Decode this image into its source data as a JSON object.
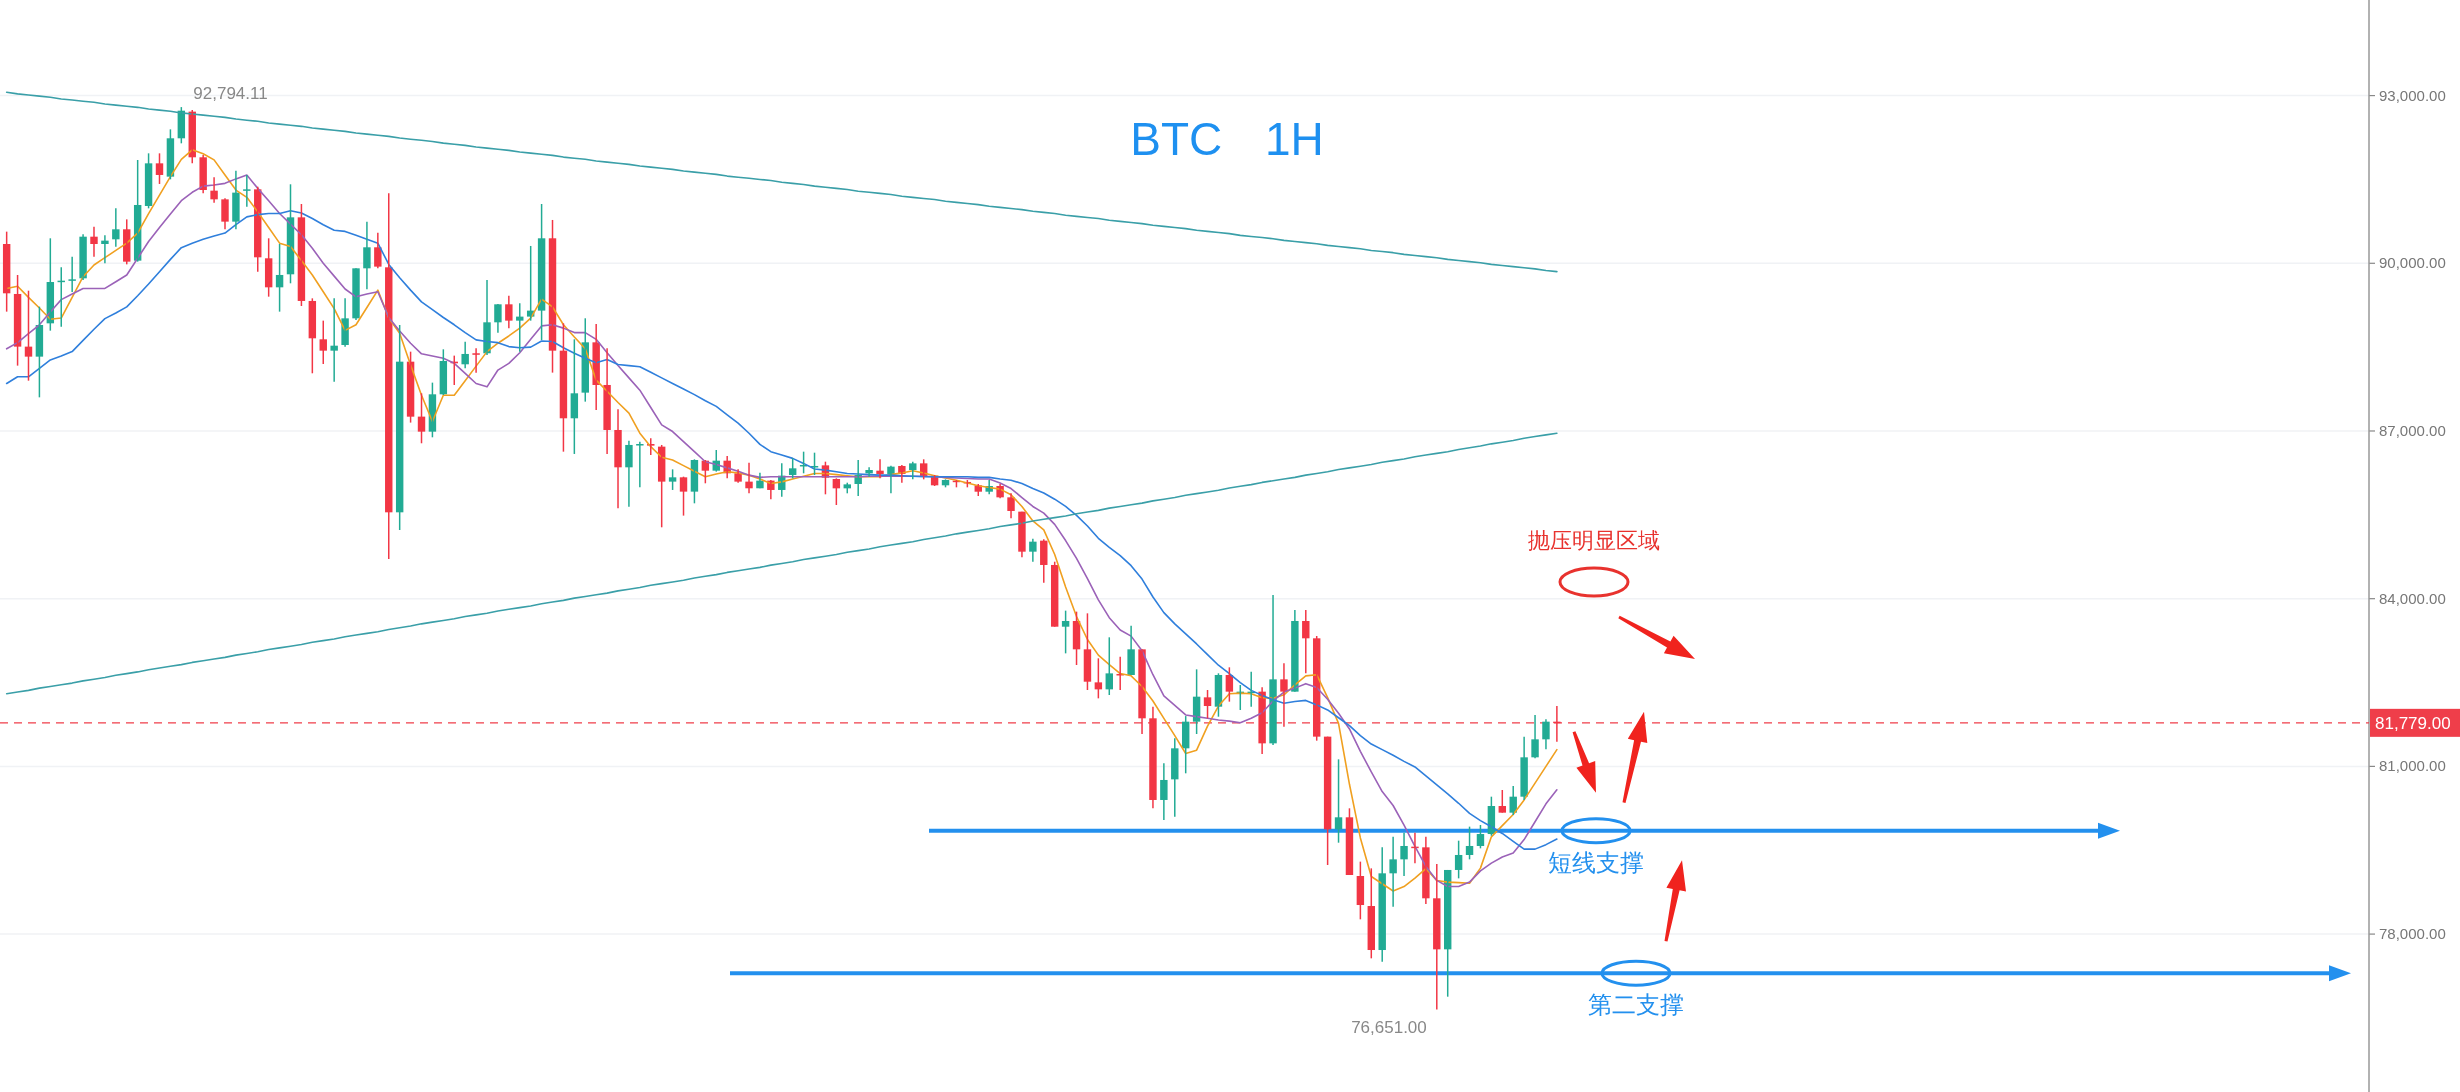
{
  "chart_data": {
    "type": "candlestick",
    "title": "BTC 1H",
    "categories": [
      null,
      null,
      null,
      null,
      null,
      null,
      null,
      null,
      null,
      null,
      null,
      null,
      null,
      null,
      null,
      null,
      null,
      null,
      null,
      null,
      null,
      null,
      null,
      null,
      null,
      null,
      null,
      null,
      null,
      null,
      null,
      null,
      null,
      null,
      null,
      null,
      null,
      null,
      null,
      null,
      null,
      null,
      null,
      null,
      null,
      null,
      null,
      null,
      null,
      null,
      null,
      null,
      null,
      null,
      null,
      null,
      null,
      null,
      null,
      null,
      null,
      null,
      null,
      null,
      null,
      null,
      null,
      null,
      null,
      null,
      null,
      null,
      null,
      null,
      null,
      null,
      null,
      null,
      null,
      null,
      null,
      null,
      null,
      null,
      null,
      null,
      null,
      null,
      null,
      null,
      null,
      null,
      null,
      null,
      null,
      null,
      null,
      null,
      null,
      null,
      null,
      null,
      null,
      null,
      null,
      null,
      null,
      null,
      null,
      null,
      null,
      null,
      null,
      null,
      null,
      null,
      null,
      null,
      null,
      null,
      null,
      null,
      null,
      null,
      null,
      null,
      null,
      null,
      null,
      null,
      null,
      null,
      null,
      null,
      null,
      null,
      null,
      null,
      null,
      null,
      null,
      null,
      null
    ],
    "ohlc": [
      [
        90345,
        90566,
        89135,
        89463
      ],
      [
        89451,
        89791,
        88169,
        88509
      ],
      [
        88509,
        89510,
        87900,
        88330
      ],
      [
        88330,
        89224,
        87602,
        88896
      ],
      [
        88926,
        90447,
        88795,
        89665
      ],
      [
        89671,
        89928,
        88866,
        89689
      ],
      [
        89701,
        90119,
        89486,
        89713
      ],
      [
        89731,
        90518,
        89701,
        90476
      ],
      [
        90476,
        90655,
        90119,
        90345
      ],
      [
        90345,
        90500,
        89999,
        90405
      ],
      [
        90429,
        90983,
        90297,
        90608
      ],
      [
        90608,
        90786,
        89981,
        90029
      ],
      [
        90047,
        91848,
        90029,
        91043
      ],
      [
        91025,
        91967,
        90983,
        91788
      ],
      [
        91788,
        91967,
        91419,
        91580
      ],
      [
        91550,
        92396,
        91502,
        92236
      ],
      [
        92236,
        92794.11,
        92146,
        92730
      ],
      [
        92713,
        92742,
        91788,
        91896
      ],
      [
        91896,
        91937,
        91252,
        91311
      ],
      [
        91299,
        91538,
        91085,
        91144
      ],
      [
        91144,
        91162,
        90608,
        90745
      ],
      [
        90745,
        91657,
        90608,
        91264
      ],
      [
        91299,
        91580,
        91013,
        91323
      ],
      [
        91323,
        91371,
        89850,
        90107
      ],
      [
        90089,
        90447,
        89403,
        89570
      ],
      [
        89570,
        90345,
        89135,
        89791
      ],
      [
        89803,
        91413,
        89642,
        90822
      ],
      [
        90822,
        91061,
        89236,
        89326
      ],
      [
        89326,
        89373,
        88032,
        88658
      ],
      [
        88640,
        88974,
        88198,
        88437
      ],
      [
        88437,
        89373,
        87882,
        88526
      ],
      [
        88538,
        89373,
        88509,
        89015
      ],
      [
        89015,
        89910,
        88985,
        89910
      ],
      [
        89910,
        90745,
        89534,
        90286
      ],
      [
        90286,
        90548,
        89910,
        89940
      ],
      [
        89928,
        91252,
        84710,
        85545
      ],
      [
        85545,
        88896,
        85229,
        88240
      ],
      [
        88240,
        88419,
        87150,
        87256
      ],
      [
        87257,
        87674,
        86780,
        86988
      ],
      [
        86988,
        87865,
        86887,
        87656
      ],
      [
        87656,
        88461,
        87644,
        88252
      ],
      [
        88240,
        88348,
        87823,
        88211
      ],
      [
        88193,
        88598,
        88121,
        88378
      ],
      [
        88390,
        88479,
        88044,
        88372
      ],
      [
        88390,
        89702,
        88360,
        88944
      ],
      [
        88944,
        89272,
        88759,
        89266
      ],
      [
        89266,
        89421,
        88837,
        88974
      ],
      [
        88974,
        89284,
        88419,
        89046
      ],
      [
        89046,
        90310,
        88974,
        89153
      ],
      [
        89153,
        91061,
        88628,
        90447
      ],
      [
        90447,
        90775,
        88044,
        88437
      ],
      [
        88437,
        88926,
        86630,
        87227
      ],
      [
        87227,
        88640,
        86589,
        87674
      ],
      [
        87686,
        89016,
        87525,
        88586
      ],
      [
        88586,
        88914,
        87376,
        87823
      ],
      [
        87823,
        88479,
        86589,
        87018
      ],
      [
        87018,
        87388,
        85617,
        86350
      ],
      [
        86350,
        86827,
        85646,
        86750
      ],
      [
        86750,
        86809,
        85992,
        86767
      ],
      [
        86767,
        86869,
        86571,
        86738
      ],
      [
        86720,
        86750,
        85277,
        86094
      ],
      [
        86094,
        86314,
        85945,
        86171
      ],
      [
        86171,
        86183,
        85486,
        85915
      ],
      [
        85915,
        86493,
        85706,
        86481
      ],
      [
        86469,
        86481,
        86064,
        86290
      ],
      [
        86290,
        86660,
        86273,
        86469
      ],
      [
        86469,
        86553,
        86153,
        86243
      ],
      [
        86243,
        86314,
        86076,
        86094
      ],
      [
        86094,
        86434,
        85885,
        85975
      ],
      [
        85975,
        86255,
        85975,
        86112
      ],
      [
        86112,
        86124,
        85778,
        85945
      ],
      [
        85945,
        86422,
        85825,
        86201
      ],
      [
        86213,
        86511,
        86153,
        86332
      ],
      [
        86374,
        86630,
        86243,
        86392
      ],
      [
        86350,
        86612,
        86213,
        86374
      ],
      [
        86385,
        86451,
        85867,
        86165
      ],
      [
        86141,
        86153,
        85676,
        85974
      ],
      [
        85974,
        86075,
        85885,
        86045
      ],
      [
        86052,
        86481,
        85837,
        86213
      ],
      [
        86243,
        86350,
        86183,
        86302
      ],
      [
        86290,
        86493,
        86153,
        86231
      ],
      [
        86231,
        86380,
        85885,
        86362
      ],
      [
        86374,
        86392,
        86075,
        86231
      ],
      [
        86302,
        86451,
        86135,
        86421
      ],
      [
        86421,
        86493,
        86135,
        86195
      ],
      [
        86201,
        86213,
        86016,
        86028
      ],
      [
        86028,
        86135,
        85992,
        86123
      ],
      [
        86111,
        86123,
        85992,
        86093
      ],
      [
        86088,
        86123,
        85992,
        86064
      ],
      [
        86028,
        86052,
        85837,
        85914
      ],
      [
        85914,
        86123,
        85867,
        86016
      ],
      [
        86016,
        86052,
        85795,
        85813
      ],
      [
        85813,
        85885,
        85437,
        85569
      ],
      [
        85557,
        85557,
        84740,
        84841
      ],
      [
        84841,
        85074,
        84662,
        85020
      ],
      [
        85038,
        85062,
        84286,
        84603
      ],
      [
        84603,
        84662,
        83499,
        83499
      ],
      [
        83499,
        83786,
        83022,
        83601
      ],
      [
        83601,
        83768,
        82814,
        83094
      ],
      [
        83094,
        83738,
        82366,
        82515
      ],
      [
        82503,
        82933,
        82217,
        82378
      ],
      [
        82378,
        83309,
        82277,
        82664
      ],
      [
        82653,
        82963,
        82366,
        82635
      ],
      [
        82635,
        83517,
        82635,
        83094
      ],
      [
        83094,
        83094,
        81579,
        81860
      ],
      [
        81860,
        82068,
        80250,
        80399
      ],
      [
        80399,
        81055,
        80041,
        80757
      ],
      [
        80768,
        81502,
        80100,
        81323
      ],
      [
        81323,
        81900,
        80876,
        81800
      ],
      [
        81800,
        82736,
        81579,
        82247
      ],
      [
        82235,
        82366,
        81860,
        82080
      ],
      [
        82068,
        82665,
        81889,
        82635
      ],
      [
        82635,
        82772,
        82158,
        82337
      ],
      [
        82319,
        82456,
        82009,
        82337
      ],
      [
        82319,
        82694,
        82068,
        82337
      ],
      [
        82337,
        82414,
        81222,
        81412
      ],
      [
        81412,
        84066,
        81383,
        82557
      ],
      [
        82557,
        82843,
        81710,
        82337
      ],
      [
        82337,
        83798,
        82337,
        83601
      ],
      [
        83601,
        83798,
        82665,
        83291
      ],
      [
        83291,
        83332,
        81460,
        81532
      ],
      [
        81532,
        81532,
        79236,
        79874
      ],
      [
        79874,
        81126,
        79635,
        80089
      ],
      [
        80089,
        80250,
        79057,
        79057
      ],
      [
        79039,
        79296,
        78264,
        78520
      ],
      [
        78502,
        79176,
        77566,
        77715
      ],
      [
        77715,
        79552,
        77507,
        79087
      ],
      [
        79087,
        79743,
        78490,
        79337
      ],
      [
        79337,
        79814,
        79039,
        79576
      ],
      [
        79564,
        79814,
        79266,
        79552
      ],
      [
        79552,
        79743,
        78538,
        78640
      ],
      [
        78640,
        79254,
        76651,
        77727
      ],
      [
        77727,
        79147,
        76880,
        79147
      ],
      [
        79147,
        79671,
        78997,
        79415
      ],
      [
        79415,
        79922,
        79337,
        79576
      ],
      [
        79576,
        79951,
        79534,
        79790
      ],
      [
        79790,
        80458,
        79760,
        80291
      ],
      [
        80291,
        80578,
        80172,
        80172
      ],
      [
        80172,
        80650,
        80131,
        80458
      ],
      [
        80458,
        81532,
        80399,
        81162
      ],
      [
        81162,
        81919,
        81144,
        81484
      ],
      [
        81484,
        81842,
        81305,
        81800
      ],
      [
        81800,
        82080,
        81442,
        81779
      ]
    ],
    "ylim": [
      75175,
      94710
    ],
    "yticks": [
      {
        "value": 78000,
        "label": "78,000.00"
      },
      {
        "value": 81000,
        "label": "81,000.00"
      },
      {
        "value": 84000,
        "label": "84,000.00"
      },
      {
        "value": 87000,
        "label": "87,000.00"
      },
      {
        "value": 90000,
        "label": "90,000.00"
      },
      {
        "value": 93000,
        "label": "93,000.00"
      }
    ],
    "tick_labels": "y",
    "grid": "y",
    "series": [
      {
        "type": "line",
        "color": "#f0a020",
        "values": [
          89550,
          89590,
          89390,
          89200,
          89000,
          89020,
          89390,
          89760,
          89970,
          90100,
          90230,
          90360,
          90540,
          90890,
          91220,
          91550,
          91860,
          92030,
          91960,
          91850,
          91580,
          91310,
          91180,
          90920,
          90640,
          90360,
          90300,
          90050,
          89790,
          89490,
          89190,
          88800,
          88900,
          89210,
          89520,
          89020,
          88750,
          88180,
          87640,
          87170,
          87640,
          87640,
          87900,
          88160,
          88420,
          88570,
          88700,
          88840,
          89020,
          89360,
          89220,
          88900,
          88680,
          88470,
          87910,
          87710,
          87510,
          87320,
          86960,
          86720,
          86530,
          86480,
          86380,
          86280,
          86180,
          86230,
          86270,
          86250,
          86210,
          86140,
          86060,
          86090,
          86140,
          86190,
          86240,
          86240,
          86220,
          86200,
          86180,
          86180,
          86180,
          86220,
          86250,
          86290,
          86250,
          86200,
          86160,
          86120,
          86070,
          86020,
          85990,
          85960,
          85860,
          85650,
          85390,
          85230,
          84790,
          84210,
          83680,
          83270,
          82990,
          82820,
          82660,
          82620,
          82430,
          82170,
          81860,
          81550,
          81230,
          81290,
          81720,
          82080,
          82300,
          82310,
          82300,
          82230,
          82220,
          82280,
          82460,
          82620,
          82640,
          82230,
          81770,
          80680,
          79720,
          79030,
          78900,
          78770,
          78850,
          79000,
          79170,
          78960,
          78930,
          78920,
          78910,
          79180,
          79740,
          79940,
          80140,
          80400,
          80700,
          81000,
          81300
        ]
      },
      {
        "type": "line",
        "color": "#9b62b8",
        "values": [
          88470,
          88580,
          88740,
          88900,
          89130,
          89350,
          89450,
          89550,
          89550,
          89550,
          89670,
          89790,
          90090,
          90390,
          90640,
          90880,
          91120,
          91270,
          91380,
          91400,
          91430,
          91510,
          91580,
          91340,
          91120,
          90890,
          90700,
          90510,
          90270,
          90000,
          89770,
          89540,
          89400,
          89450,
          89490,
          89030,
          88790,
          88570,
          88380,
          88340,
          88300,
          88210,
          88030,
          87850,
          87790,
          88090,
          88210,
          88400,
          88640,
          88880,
          88900,
          88840,
          88760,
          88760,
          88640,
          88400,
          88170,
          87950,
          87730,
          87420,
          87110,
          86990,
          86810,
          86630,
          86450,
          86400,
          86340,
          86280,
          86210,
          86170,
          86180,
          86180,
          86180,
          86180,
          86180,
          86180,
          86180,
          86180,
          86180,
          86190,
          86190,
          86190,
          86190,
          86190,
          86190,
          86180,
          86170,
          86160,
          86150,
          86140,
          86140,
          86070,
          85970,
          85810,
          85650,
          85530,
          85330,
          85040,
          84720,
          84360,
          83980,
          83660,
          83440,
          83330,
          83070,
          82640,
          82260,
          82090,
          81920,
          81890,
          81860,
          81830,
          81810,
          81780,
          81860,
          81960,
          82170,
          82330,
          82400,
          82480,
          82410,
          82200,
          81950,
          81670,
          81270,
          80900,
          80550,
          80300,
          79950,
          79570,
          79210,
          78960,
          78850,
          78850,
          78930,
          79130,
          79270,
          79380,
          79450,
          79690,
          80010,
          80330,
          80580
        ]
      },
      {
        "type": "line",
        "color": "#2f7fdc",
        "values": [
          87850,
          87970,
          87970,
          88120,
          88270,
          88340,
          88420,
          88620,
          88820,
          89010,
          89110,
          89220,
          89420,
          89630,
          89850,
          90070,
          90280,
          90360,
          90430,
          90490,
          90540,
          90690,
          90830,
          90870,
          90890,
          90890,
          90940,
          90900,
          90800,
          90690,
          90590,
          90570,
          90500,
          90430,
          90360,
          89980,
          89740,
          89520,
          89310,
          89170,
          89030,
          88900,
          88760,
          88630,
          88600,
          88580,
          88510,
          88490,
          88500,
          88610,
          88600,
          88490,
          88390,
          88300,
          88220,
          88280,
          88190,
          88170,
          88150,
          88050,
          87950,
          87850,
          87750,
          87650,
          87540,
          87440,
          87290,
          87140,
          86960,
          86760,
          86630,
          86570,
          86510,
          86420,
          86320,
          86300,
          86270,
          86240,
          86230,
          86220,
          86210,
          86210,
          86200,
          86190,
          86180,
          86180,
          86180,
          86180,
          86180,
          86170,
          86170,
          86140,
          86120,
          86060,
          85970,
          85890,
          85780,
          85650,
          85490,
          85300,
          85080,
          84920,
          84770,
          84590,
          84350,
          84030,
          83750,
          83550,
          83370,
          83190,
          83000,
          82810,
          82660,
          82500,
          82360,
          82270,
          82190,
          82130,
          82160,
          82180,
          82100,
          82010,
          81870,
          81730,
          81550,
          81400,
          81300,
          81200,
          81090,
          80990,
          80830,
          80670,
          80510,
          80340,
          80160,
          80030,
          79920,
          79800,
          79660,
          79520,
          79520,
          79600,
          79700
        ]
      },
      {
        "type": "line",
        "color": "#3a9fa8",
        "values": [
          93060,
          93030,
          93010,
          92990,
          92970,
          92940,
          92920,
          92900,
          92880,
          92850,
          92830,
          92810,
          92790,
          92760,
          92740,
          92720,
          92690,
          92670,
          92650,
          92630,
          92610,
          92580,
          92560,
          92540,
          92510,
          92490,
          92470,
          92450,
          92420,
          92400,
          92380,
          92360,
          92330,
          92310,
          92290,
          92270,
          92240,
          92220,
          92200,
          92180,
          92150,
          92130,
          92110,
          92080,
          92060,
          92040,
          92020,
          91990,
          91970,
          91950,
          91930,
          91900,
          91880,
          91860,
          91830,
          91810,
          91790,
          91770,
          91740,
          91720,
          91700,
          91680,
          91650,
          91630,
          91610,
          91590,
          91560,
          91540,
          91520,
          91500,
          91480,
          91450,
          91430,
          91410,
          91380,
          91360,
          91340,
          91320,
          91290,
          91270,
          91250,
          91230,
          91200,
          91180,
          91160,
          91140,
          91110,
          91090,
          91070,
          91050,
          91020,
          91000,
          90980,
          90960,
          90930,
          90910,
          90890,
          90860,
          90840,
          90820,
          90800,
          90770,
          90750,
          90730,
          90710,
          90680,
          90660,
          90640,
          90620,
          90590,
          90570,
          90550,
          90530,
          90500,
          90480,
          90460,
          90440,
          90410,
          90390,
          90370,
          90350,
          90320,
          90300,
          90280,
          90260,
          90230,
          90210,
          90190,
          90160,
          90140,
          90120,
          90100,
          90070,
          90050,
          90030,
          90010,
          89980,
          89960,
          89940,
          89920,
          89900,
          89870,
          89850
        ]
      },
      {
        "type": "line",
        "color": "#3a9fa8",
        "values": [
          82300,
          82330,
          82360,
          82400,
          82430,
          82460,
          82490,
          82530,
          82560,
          82590,
          82630,
          82660,
          82690,
          82730,
          82760,
          82790,
          82820,
          82860,
          82890,
          82920,
          82950,
          82990,
          83020,
          83050,
          83090,
          83120,
          83150,
          83180,
          83220,
          83250,
          83280,
          83320,
          83350,
          83380,
          83410,
          83450,
          83480,
          83510,
          83550,
          83580,
          83610,
          83640,
          83680,
          83710,
          83740,
          83780,
          83810,
          83840,
          83870,
          83910,
          83940,
          83970,
          84010,
          84040,
          84070,
          84100,
          84140,
          84170,
          84200,
          84240,
          84270,
          84300,
          84330,
          84370,
          84400,
          84430,
          84470,
          84500,
          84530,
          84560,
          84600,
          84630,
          84660,
          84700,
          84730,
          84760,
          84790,
          84830,
          84860,
          84890,
          84930,
          84960,
          84990,
          85020,
          85060,
          85090,
          85120,
          85160,
          85190,
          85220,
          85250,
          85290,
          85320,
          85350,
          85390,
          85420,
          85450,
          85480,
          85520,
          85550,
          85580,
          85620,
          85650,
          85680,
          85710,
          85750,
          85780,
          85810,
          85850,
          85880,
          85910,
          85940,
          85980,
          86010,
          86040,
          86080,
          86110,
          86140,
          86170,
          86210,
          86240,
          86270,
          86310,
          86340,
          86370,
          86400,
          86440,
          86470,
          86500,
          86540,
          86570,
          86600,
          86630,
          86670,
          86700,
          86730,
          86770,
          86800,
          86830,
          86870,
          86900,
          86930,
          86960
        ]
      }
    ],
    "ref_lines": [
      {
        "axis": "y",
        "value": 81779,
        "label": "81,779.00",
        "color": "#ef3e4a",
        "line_style": "dashed"
      },
      {
        "axis": "y",
        "value": 79850,
        "color": "#2390ee",
        "line_style": "solid"
      },
      {
        "axis": "y",
        "value": 77300,
        "color": "#2390ee",
        "line_style": "solid"
      }
    ],
    "annotations": [
      "92,794.11",
      "76,651.00",
      "抛压明显区域",
      "短线支撑",
      "第二支撑"
    ]
  }
}
